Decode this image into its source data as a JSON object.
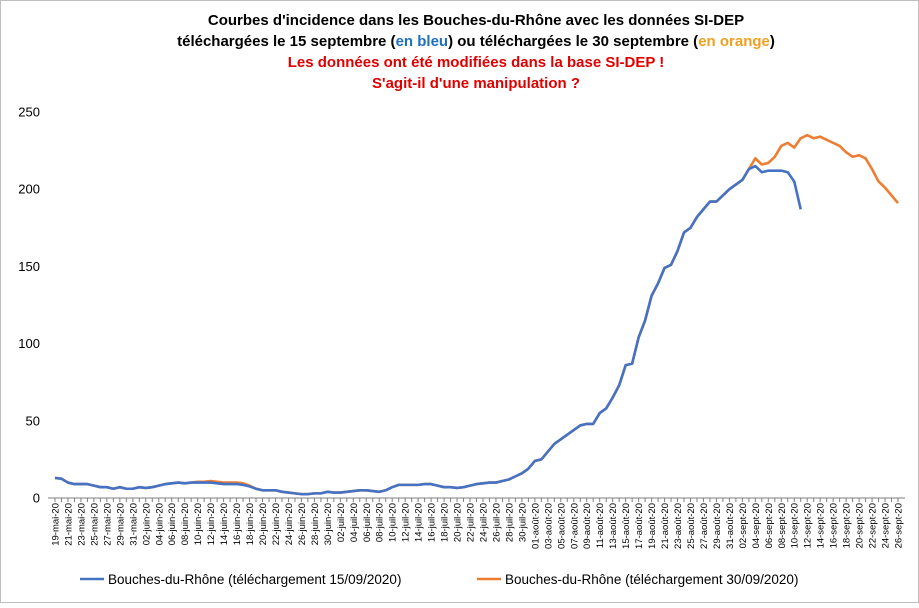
{
  "chart_data": {
    "type": "line",
    "title_lines": [
      [
        "Courbes d'incidence dans les Bouches-du-Rhône avec les données SI-DEP"
      ],
      [
        "téléchargées le 15 septembre (",
        "en bleu",
        ") ou téléchargées le 30 septembre (",
        "en orange",
        ")"
      ],
      [
        "Les données ont été modifiées dans la base SI-DEP !"
      ],
      [
        "S'agit-il d'une manipulation ?"
      ]
    ],
    "categories": [
      "19-mai-20",
      null,
      "21-mai-20",
      null,
      "23-mai-20",
      null,
      "25-mai-20",
      null,
      "27-mai-20",
      null,
      "29-mai-20",
      null,
      "31-mai-20",
      null,
      "02-juin-20",
      null,
      "04-juin-20",
      null,
      "06-juin-20",
      null,
      "08-juin-20",
      null,
      "10-juin-20",
      null,
      "12-juin-20",
      null,
      "14-juin-20",
      null,
      "16-juin-20",
      null,
      "18-juin-20",
      null,
      "20-juin-20",
      null,
      "22-juin-20",
      null,
      "24-juin-20",
      null,
      "26-juin-20",
      null,
      "28-juin-20",
      null,
      "30-juin-20",
      null,
      "02-juil-20",
      null,
      "04-juil-20",
      null,
      "06-juil-20",
      null,
      "08-juil-20",
      null,
      "10-juil-20",
      null,
      "12-juil-20",
      null,
      "14-juil-20",
      null,
      "16-juil-20",
      null,
      "18-juil-20",
      null,
      "20-juil-20",
      null,
      "22-juil-20",
      null,
      "24-juil-20",
      null,
      "26-juil-20",
      null,
      "28-juil-20",
      null,
      "30-juil-20",
      null,
      "01-août-20",
      null,
      "03-août-20",
      null,
      "05-août-20",
      null,
      "07-août-20",
      null,
      "09-août-20",
      null,
      "11-août-20",
      null,
      "13-août-20",
      null,
      "15-août-20",
      null,
      "17-août-20",
      null,
      "19-août-20",
      null,
      "21-août-20",
      null,
      "23-août-20",
      null,
      "25-août-20",
      null,
      "27-août-20",
      null,
      "29-août-20",
      null,
      "31-août-20",
      null,
      "02-sept-20",
      null,
      "04-sept-20",
      null,
      "06-sept-20",
      null,
      "08-sept-20",
      null,
      "10-sept-20",
      null,
      "12-sept-20",
      null,
      "14-sept-20",
      null,
      "16-sept-20",
      null,
      "18-sept-20",
      null,
      "20-sept-20",
      null,
      "22-sept-20",
      null,
      "24-sept-20",
      null,
      "26-sept-20"
    ],
    "series": [
      {
        "name": "Bouches-du-Rhône (téléchargement 15/09/2020)",
        "color": "#4472c4",
        "values": [
          13,
          12.5,
          10,
          9,
          9,
          9,
          8,
          7,
          7,
          6,
          7,
          6,
          6,
          7,
          6.5,
          7,
          8,
          9,
          9.5,
          10,
          9.5,
          10,
          10,
          10,
          10,
          9.5,
          9,
          9,
          9,
          8.5,
          7.5,
          6,
          5,
          5,
          5,
          4,
          3.5,
          3,
          2.5,
          2.5,
          3,
          3,
          4,
          3.5,
          3.5,
          4,
          4.5,
          5,
          5,
          4.5,
          4,
          5,
          7,
          8.5,
          8.5,
          8.5,
          8.5,
          9,
          9,
          8,
          7,
          7,
          6.5,
          7,
          8,
          9,
          9.5,
          10,
          10,
          11,
          12,
          14,
          16,
          19,
          24,
          25,
          30,
          35,
          38,
          41,
          44,
          47,
          48,
          48,
          55,
          58,
          65,
          73,
          86,
          87,
          104,
          115,
          131,
          139,
          149,
          151,
          160,
          172,
          175,
          182,
          187,
          192,
          192,
          196,
          200,
          203,
          206,
          213,
          215,
          211,
          212,
          212,
          212,
          211,
          205,
          187,
          null,
          null,
          null,
          null,
          null,
          null,
          null,
          null,
          null,
          null,
          null,
          null,
          null,
          null,
          null
        ]
      },
      {
        "name": "Bouches-du-Rhône (téléchargement 30/09/2020)",
        "color": "#ed7d31",
        "values": [
          13,
          12.5,
          10,
          9,
          9,
          9,
          8,
          7,
          7,
          6,
          7,
          6,
          6,
          7,
          6.5,
          7,
          8,
          9,
          9.5,
          10,
          9.5,
          10,
          10.5,
          10.5,
          11,
          10.5,
          10,
          10,
          10,
          9.5,
          8,
          6,
          5,
          5,
          5,
          4,
          3.5,
          3,
          2.5,
          2.5,
          3,
          3,
          4,
          3.5,
          3.5,
          4,
          4.5,
          5,
          5,
          4.5,
          4,
          5,
          7,
          8.5,
          8.5,
          8.5,
          8.5,
          9,
          9,
          8,
          7,
          7,
          6.5,
          7,
          8,
          9,
          9.5,
          10,
          10,
          11,
          12,
          14,
          16,
          19,
          24,
          25,
          30,
          35,
          38,
          41,
          44,
          47,
          48,
          48,
          55,
          58,
          65,
          73,
          86,
          87,
          104,
          115,
          131,
          139,
          149,
          151,
          160,
          172,
          175,
          182,
          187,
          192,
          192,
          196,
          200,
          203,
          206,
          213,
          220,
          216,
          217,
          221,
          228,
          230,
          227,
          233,
          235,
          233,
          234,
          232,
          230,
          228,
          224,
          221,
          222,
          220,
          213,
          205,
          201,
          196,
          191
        ]
      }
    ],
    "ylim": [
      0,
      250
    ],
    "yticks": [
      0,
      50,
      100,
      150,
      200,
      250
    ],
    "grid": false,
    "legend": "bottom"
  }
}
